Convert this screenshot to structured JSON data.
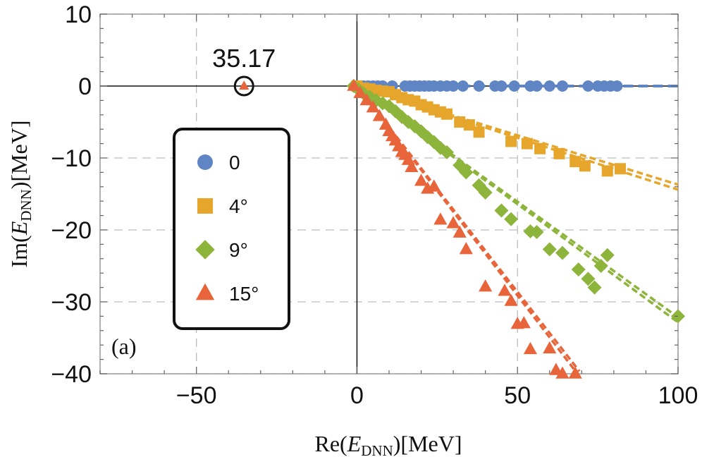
{
  "chart_data": {
    "type": "scatter",
    "panel_label": "(a)",
    "xlabel": {
      "prefix": "Re(",
      "var": "E",
      "sub": "DNN",
      "suffix": ")[MeV]"
    },
    "ylabel": {
      "prefix": "Im(",
      "var": "E",
      "sub": "DNN",
      "suffix": ")[MeV]"
    },
    "xlim": [
      -80,
      100
    ],
    "ylim": [
      -40,
      10
    ],
    "xticks": [
      -50,
      0,
      50,
      100
    ],
    "yticks": [
      10,
      0,
      -10,
      -20,
      -30,
      -40
    ],
    "xtick_labels": [
      "−50",
      "0",
      "50",
      "100"
    ],
    "ytick_labels": [
      "10",
      "0",
      "−10",
      "−20",
      "−30",
      "−40"
    ],
    "grid": true,
    "legend_placement": "left",
    "bound_state": {
      "x": -35.17,
      "y": 0,
      "label": "35.17"
    },
    "series": [
      {
        "name": "0",
        "marker": "circle",
        "color": "#5f85c4",
        "line_dashed": true,
        "rotation_deg": 0,
        "x": [
          0.5,
          2,
          3.5,
          5,
          6.5,
          8,
          11,
          15,
          16.5,
          18,
          19.5,
          21,
          22.5,
          24,
          26,
          28,
          30,
          33,
          38,
          43,
          45,
          49,
          54,
          56,
          60,
          64,
          72,
          75,
          77,
          79,
          81
        ],
        "y": [
          0,
          0,
          0,
          0,
          0,
          0,
          0,
          0,
          0,
          0,
          0,
          0,
          0,
          0,
          0,
          0,
          0,
          0,
          0,
          0,
          0,
          0,
          0,
          0,
          0,
          0,
          0,
          0,
          0,
          0,
          0
        ]
      },
      {
        "name": "4°",
        "marker": "square",
        "color": "#e6a52b",
        "line_dashed": true,
        "rotation_deg": 4,
        "x": [
          0,
          2,
          4,
          6,
          8,
          10,
          12,
          14,
          16,
          18,
          20,
          22,
          24,
          26,
          28,
          32,
          35,
          38,
          48,
          53,
          57,
          63,
          68,
          71,
          78,
          82
        ],
        "y": [
          0,
          -0.3,
          -0.4,
          -0.6,
          -0.7,
          -0.8,
          -1.2,
          -1.6,
          -1.9,
          -2.1,
          -2.6,
          -2.9,
          -3.3,
          -3.6,
          -3.9,
          -5.0,
          -5.4,
          -6.4,
          -7.7,
          -8.0,
          -8.7,
          -9.4,
          -10.5,
          -11.1,
          -11.8,
          -11.5
        ]
      },
      {
        "name": "9°",
        "marker": "diamond",
        "color": "#8db43b",
        "line_dashed": true,
        "rotation_deg": 9,
        "x": [
          -1,
          0.5,
          2,
          4,
          6,
          8,
          10,
          12,
          14,
          16,
          18,
          20,
          22,
          24,
          26,
          28,
          32,
          34,
          38,
          40,
          45,
          48,
          54,
          56,
          60,
          64,
          69,
          72,
          74,
          76,
          78,
          100
        ],
        "y": [
          0,
          -0.5,
          -1,
          -1.5,
          -2,
          -2.4,
          -2.8,
          -3.5,
          -4.3,
          -5,
          -5.6,
          -6.3,
          -7.1,
          -7.8,
          -8.6,
          -9.2,
          -11,
          -12,
          -13.8,
          -14.8,
          -17.3,
          -18.5,
          -20.2,
          -20.3,
          -22.7,
          -23.2,
          -25.5,
          -26.8,
          -28,
          -25,
          -23.5,
          -32
        ]
      },
      {
        "name": "15°",
        "marker": "triangle",
        "color": "#e8643a",
        "line_dashed": true,
        "rotation_deg": 15,
        "x": [
          -1,
          1,
          3,
          5,
          7,
          9,
          10,
          11,
          12,
          13,
          14,
          15,
          16,
          17,
          20,
          22,
          24,
          26,
          30,
          32,
          34,
          40,
          46,
          48,
          50,
          52,
          54,
          60,
          62,
          64,
          68
        ],
        "y": [
          0,
          -1,
          -2,
          -3,
          -4.2,
          -5.4,
          -6.3,
          -7,
          -7.6,
          -8.4,
          -9.2,
          -9.6,
          -10.3,
          -11.3,
          -13.2,
          -14.3,
          -14,
          -18.6,
          -19.1,
          -20.4,
          -22.7,
          -27.9,
          -28.5,
          -29.9,
          -33.1,
          -33,
          -36.6,
          -36.5,
          -39.5,
          -40,
          -40
        ]
      }
    ],
    "legend_entries": [
      "0",
      "4°",
      "9°",
      "15°"
    ]
  }
}
